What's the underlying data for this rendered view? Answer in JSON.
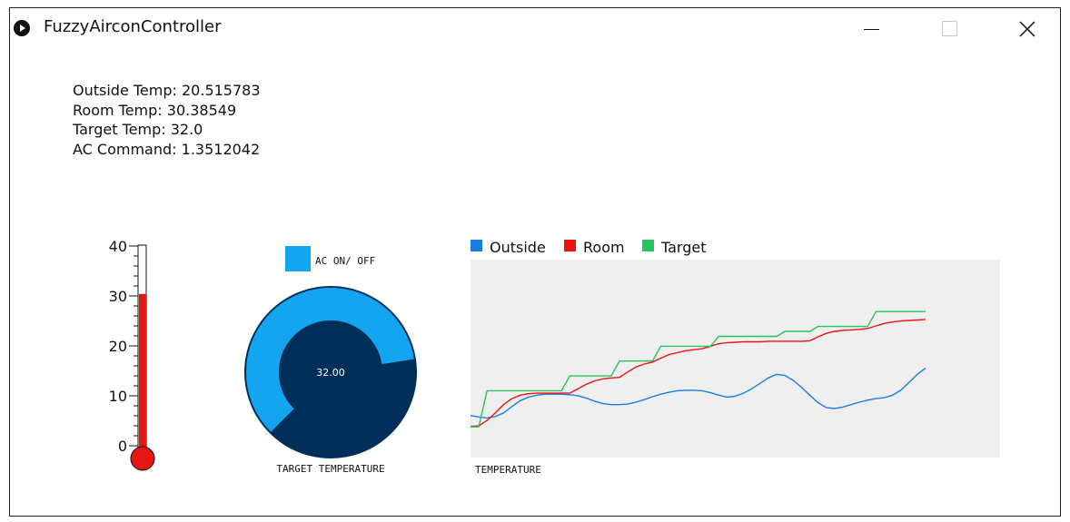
{
  "window": {
    "title": "FuzzyAirconController",
    "app_icon": "play-circle-icon",
    "controls": [
      "minimize-icon",
      "maximize-icon",
      "close-icon"
    ]
  },
  "readouts": [
    {
      "label": "Outside Temp:",
      "value": "20.515783"
    },
    {
      "label": "Room Temp:",
      "value": "30.38549"
    },
    {
      "label": "Target Temp:",
      "value": "32.0"
    },
    {
      "label": "AC Command:",
      "value": "1.3512042"
    }
  ],
  "thermometer": {
    "ticks": [
      "40",
      "30",
      "20",
      "10",
      "0"
    ],
    "min": 0,
    "max": 40,
    "value": 30.4,
    "fill_color": "#e51616"
  },
  "ac_toggle": {
    "label": "AC ON/ OFF",
    "color": "#13a5f0"
  },
  "knob": {
    "value_text": "32.00",
    "label": "TARGET TEMPERATURE",
    "fraction": 0.8,
    "arc_color": "#13a5f0",
    "bg_color": "#00305a"
  },
  "chart_data": {
    "type": "line",
    "xlabel": "TEMPERATURE",
    "legend_position": "top-left",
    "background": "#efefef",
    "ylim": [
      0,
      40
    ],
    "x": [
      0,
      1,
      2,
      3,
      4,
      5,
      6,
      7,
      8,
      9,
      10,
      11,
      12,
      13,
      14,
      15,
      16,
      17,
      18,
      19,
      20,
      21,
      22,
      23,
      24,
      25,
      26,
      27,
      28,
      29,
      30,
      31,
      32,
      33,
      34,
      35,
      36,
      37,
      38,
      39,
      40,
      41,
      42,
      43,
      44,
      45,
      46,
      47,
      48,
      49,
      50,
      51,
      52,
      53,
      54,
      55,
      56,
      57,
      58,
      59,
      60,
      61,
      62,
      63,
      64
    ],
    "series": [
      {
        "name": "Outside",
        "color": "#1a7ee0",
        "values": [
          8.5,
          8.2,
          8.0,
          8.3,
          9.0,
          10.3,
          11.5,
          12.2,
          12.6,
          12.8,
          12.8,
          12.8,
          12.7,
          12.5,
          12.0,
          11.4,
          10.9,
          10.7,
          10.7,
          10.8,
          11.2,
          11.7,
          12.3,
          12.8,
          13.2,
          13.5,
          13.6,
          13.6,
          13.5,
          13.1,
          12.6,
          12.2,
          12.4,
          13.0,
          13.9,
          15.0,
          16.1,
          16.8,
          16.6,
          15.6,
          14.2,
          12.6,
          11.1,
          10.1,
          9.9,
          10.2,
          10.7,
          11.2,
          11.6,
          11.9,
          12.1,
          12.6,
          13.6,
          15.2,
          16.8,
          18.1,
          null,
          null,
          null,
          null,
          null,
          null,
          null,
          null,
          null
        ]
      },
      {
        "name": "Room",
        "color": "#ee1111",
        "values": [
          6.3,
          6.4,
          7.5,
          9.0,
          10.7,
          11.9,
          12.6,
          12.9,
          13.0,
          13.0,
          13.0,
          13.0,
          13.0,
          13.9,
          14.8,
          15.5,
          15.9,
          16.1,
          16.2,
          17.3,
          18.3,
          18.9,
          19.3,
          20.1,
          20.8,
          21.2,
          21.6,
          21.8,
          22.0,
          22.5,
          23.0,
          23.2,
          23.3,
          23.4,
          23.4,
          23.4,
          23.5,
          23.5,
          23.5,
          23.5,
          23.5,
          23.6,
          24.4,
          25.1,
          25.5,
          25.7,
          25.8,
          25.9,
          26.1,
          26.6,
          27.1,
          27.4,
          27.6,
          27.7,
          27.8,
          27.9,
          null,
          null,
          null,
          null,
          null,
          null,
          null,
          null,
          null
        ]
      },
      {
        "name": "Target",
        "color": "#22c55e",
        "values": [
          6.2,
          6.2,
          13.5,
          13.5,
          13.5,
          13.5,
          13.5,
          13.5,
          13.5,
          13.5,
          13.5,
          13.5,
          16.5,
          16.5,
          16.5,
          16.5,
          16.5,
          16.5,
          19.5,
          19.5,
          19.5,
          19.5,
          19.5,
          22.5,
          22.5,
          22.5,
          22.5,
          22.5,
          22.5,
          22.5,
          24.5,
          24.5,
          24.5,
          24.5,
          24.5,
          24.5,
          24.5,
          24.5,
          25.5,
          25.5,
          25.5,
          25.5,
          26.5,
          26.5,
          26.5,
          26.5,
          26.5,
          26.5,
          26.5,
          29.5,
          29.5,
          29.5,
          29.5,
          29.5,
          29.5,
          29.5,
          null,
          null,
          null,
          null,
          null,
          null,
          null,
          null,
          null
        ]
      }
    ]
  }
}
